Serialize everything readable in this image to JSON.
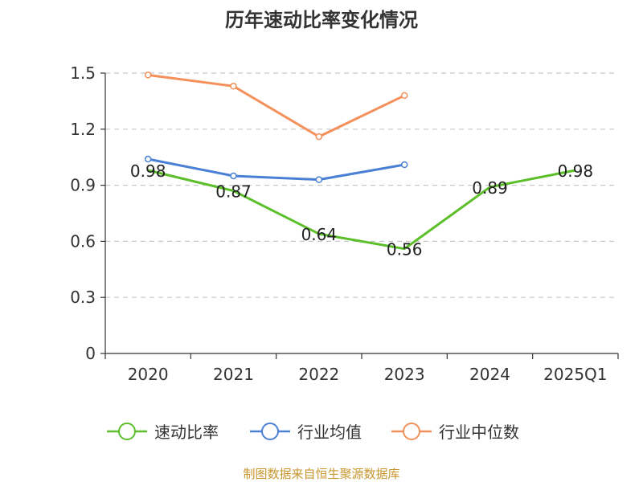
{
  "chart_data": {
    "type": "line",
    "title": "历年速动比率变化情况",
    "categories": [
      "2020",
      "2021",
      "2022",
      "2023",
      "2024",
      "2025Q1"
    ],
    "y_ticks": [
      "0",
      "0.3",
      "0.6",
      "0.9",
      "1.2",
      "1.5"
    ],
    "ylim": [
      0,
      1.5
    ],
    "grid": true,
    "legend_position": "bottom",
    "series": [
      {
        "name": "速动比率",
        "color": "#5cbf2a",
        "values": [
          0.98,
          0.87,
          0.64,
          0.56,
          0.89,
          0.98
        ],
        "labels": [
          "0.98",
          "0.87",
          "0.64",
          "0.56",
          "0.89",
          "0.98"
        ]
      },
      {
        "name": "行业均值",
        "color": "#4a7fd6",
        "values": [
          1.04,
          0.95,
          0.93,
          1.01,
          null,
          null
        ]
      },
      {
        "name": "行业中位数",
        "color": "#f4905a",
        "values": [
          1.49,
          1.43,
          1.16,
          1.38,
          null,
          null
        ]
      }
    ]
  },
  "source": "制图数据来自恒生聚源数据库"
}
